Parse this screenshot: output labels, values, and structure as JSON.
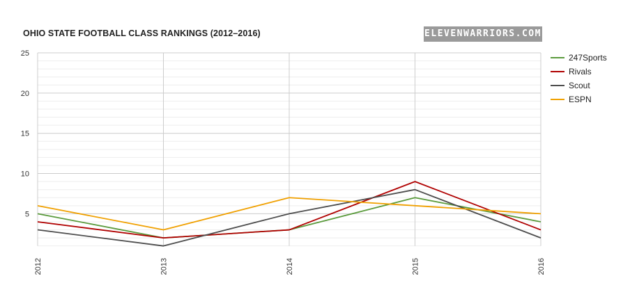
{
  "title": "OHIO STATE FOOTBALL CLASS RANKINGS (2012–2016)",
  "brand": "ELEVENWARRIORS.COM",
  "chart_data": {
    "type": "line",
    "x": [
      "2012",
      "2013",
      "2014",
      "2015",
      "2016"
    ],
    "ylim": [
      1,
      25
    ],
    "yticks": [
      5,
      10,
      15,
      20,
      25
    ],
    "grid": true,
    "legend_position": "right",
    "series": [
      {
        "name": "247Sports",
        "color": "#5a9a3c",
        "values": [
          5,
          2,
          3,
          7,
          4
        ]
      },
      {
        "name": "Rivals",
        "color": "#b00000",
        "values": [
          4,
          2,
          3,
          9,
          3
        ]
      },
      {
        "name": "Scout",
        "color": "#4d4d4d",
        "values": [
          3,
          1,
          5,
          8,
          2
        ]
      },
      {
        "name": "ESPN",
        "color": "#f0a000",
        "values": [
          6,
          3,
          7,
          6,
          5
        ]
      }
    ]
  }
}
